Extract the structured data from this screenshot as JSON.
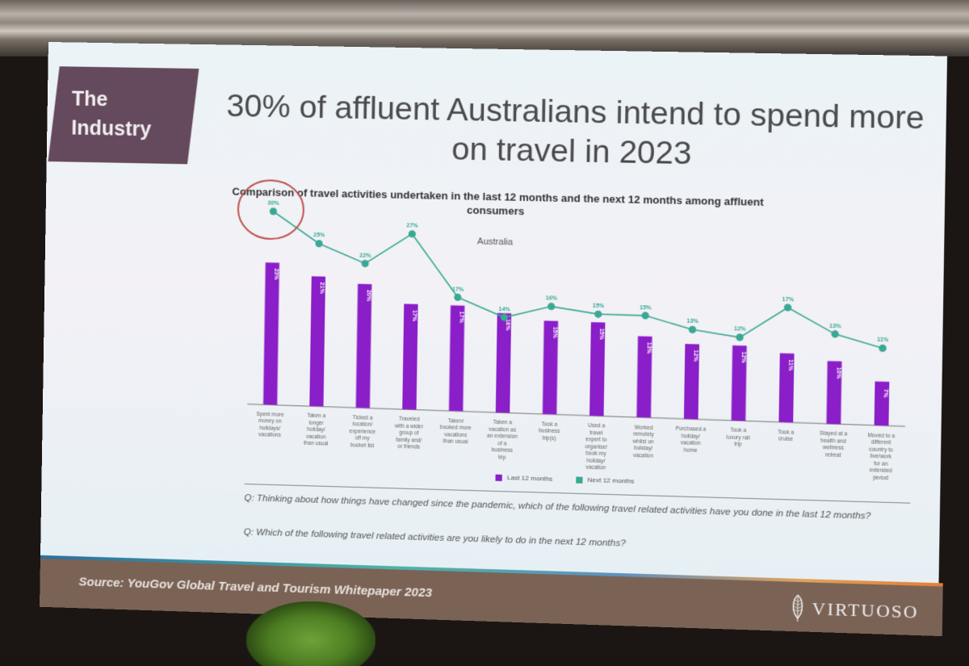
{
  "slide": {
    "section_tag": [
      "The",
      "Industry"
    ],
    "headline": "30% of affluent Australians intend to spend more on travel in 2023",
    "source": "Source: YouGov Global Travel and Tourism Whitepaper 2023",
    "brand": "VIRTUOSO",
    "brand_icon": "leaf-icon",
    "questions": [
      "Q: Thinking about how things have changed since the pandemic, which of the following travel related activities have you done in the last 12 months?",
      "Q: Which of the following travel related activities are you likely to do in the next 12 months?"
    ],
    "highlight": {
      "category_index": 0,
      "note": "red circle around 30% next 12 months",
      "color": "#c0504d"
    }
  },
  "chart_data": {
    "type": "bar+line",
    "title": "Comparison of travel activities undertaken in the last 12 months and the next 12 months among affluent consumers",
    "subtitle": "Australia",
    "xlabel": "",
    "ylabel": "",
    "ylim": [
      0,
      32
    ],
    "grid": false,
    "legend_position": "bottom",
    "categories": [
      "Spent more money on holidays/ vacations",
      "Taken a longer holiday/ vacation than usual",
      "Ticked a location/ experience off my bucket list",
      "Traveled with a wider group of family and/ or friends",
      "Taken/ booked more vacations than usual",
      "Taken a vacation as an extension of a business trip",
      "Took a business trip(s)",
      "Used a travel expert to organise/ book my holiday/ vacation",
      "Worked remotely whilst on holiday/ vacation",
      "Purchased a holiday/ vacation home",
      "Took a luxury rail trip",
      "Took a cruise",
      "Stayed at a health and wellness retreat",
      "Moved to a different country to live/work for an extended period"
    ],
    "series": [
      {
        "name": "Last 12 months",
        "type": "bar",
        "color": "#8a1ec8",
        "values": [
          23,
          21,
          20,
          17,
          17,
          16,
          15,
          15,
          13,
          12,
          12,
          11,
          10,
          7
        ]
      },
      {
        "name": "Next 12 months",
        "type": "line",
        "color": "#3aa894",
        "values": [
          30,
          25,
          22,
          27,
          17,
          14,
          16,
          15,
          15,
          13,
          12,
          17,
          13,
          11
        ]
      }
    ]
  }
}
